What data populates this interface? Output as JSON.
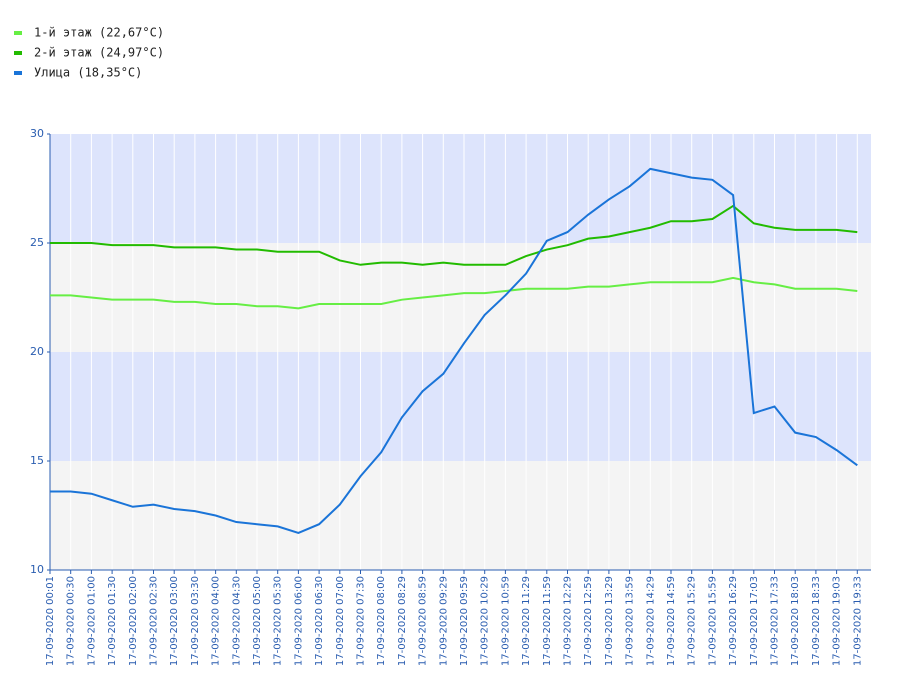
{
  "chart_data": {
    "type": "line",
    "categories": [
      "17-09-2020 00:01",
      "17-09-2020 00:30",
      "17-09-2020 01:00",
      "17-09-2020 01:30",
      "17-09-2020 02:00",
      "17-09-2020 02:30",
      "17-09-2020 03:00",
      "17-09-2020 03:30",
      "17-09-2020 04:00",
      "17-09-2020 04:30",
      "17-09-2020 05:00",
      "17-09-2020 05:30",
      "17-09-2020 06:00",
      "17-09-2020 06:30",
      "17-09-2020 07:00",
      "17-09-2020 07:30",
      "17-09-2020 08:00",
      "17-09-2020 08:29",
      "17-09-2020 08:59",
      "17-09-2020 09:29",
      "17-09-2020 09:59",
      "17-09-2020 10:29",
      "17-09-2020 10:59",
      "17-09-2020 11:29",
      "17-09-2020 11:59",
      "17-09-2020 12:29",
      "17-09-2020 12:59",
      "17-09-2020 13:29",
      "17-09-2020 13:59",
      "17-09-2020 14:29",
      "17-09-2020 14:59",
      "17-09-2020 15:29",
      "17-09-2020 15:59",
      "17-09-2020 16:29",
      "17-09-2020 17:03",
      "17-09-2020 17:33",
      "17-09-2020 18:03",
      "17-09-2020 18:33",
      "17-09-2020 19:03",
      "17-09-2020 19:33"
    ],
    "series": [
      {
        "name": "1-й этаж (22,67°C)",
        "color": "#66ee44",
        "values": [
          22.6,
          22.6,
          22.5,
          22.4,
          22.4,
          22.4,
          22.3,
          22.3,
          22.2,
          22.2,
          22.1,
          22.1,
          22.0,
          22.2,
          22.2,
          22.2,
          22.2,
          22.4,
          22.5,
          22.6,
          22.7,
          22.7,
          22.8,
          22.9,
          22.9,
          22.9,
          23.0,
          23.0,
          23.1,
          23.2,
          23.2,
          23.2,
          23.2,
          23.4,
          23.2,
          23.1,
          22.9,
          22.9,
          22.9,
          22.8
        ]
      },
      {
        "name": "2-й этаж (24,97°C)",
        "color": "#22bb00",
        "values": [
          25.0,
          25.0,
          25.0,
          24.9,
          24.9,
          24.9,
          24.8,
          24.8,
          24.8,
          24.7,
          24.7,
          24.6,
          24.6,
          24.6,
          24.2,
          24.0,
          24.1,
          24.1,
          24.0,
          24.1,
          24.0,
          24.0,
          24.0,
          24.4,
          24.7,
          24.9,
          25.2,
          25.3,
          25.5,
          25.7,
          26.0,
          26.0,
          26.1,
          26.7,
          25.9,
          25.7,
          25.6,
          25.6,
          25.6,
          25.5
        ]
      },
      {
        "name": "Улица (18,35°C)",
        "color": "#1a74d8",
        "values": [
          13.6,
          13.6,
          13.5,
          13.2,
          12.9,
          13.0,
          12.8,
          12.7,
          12.5,
          12.2,
          12.1,
          12.0,
          11.7,
          12.1,
          13.0,
          14.3,
          15.4,
          17.0,
          18.2,
          19.0,
          20.4,
          21.7,
          22.6,
          23.6,
          25.1,
          25.5,
          26.3,
          27.0,
          27.6,
          28.4,
          28.2,
          28.0,
          27.9,
          27.2,
          17.2,
          17.5,
          16.3,
          16.1,
          15.5,
          14.8
        ]
      }
    ],
    "ylim": [
      10,
      30
    ],
    "yticks": [
      10,
      15,
      20,
      25,
      30
    ],
    "band_colors": [
      "#f4f4f4",
      "#dde4fc"
    ],
    "grid": true
  }
}
